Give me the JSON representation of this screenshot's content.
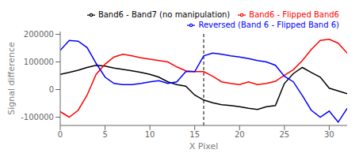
{
  "chart_data": {
    "type": "line",
    "xlabel": "X Pixel",
    "ylabel": "Signal difference",
    "x": [
      0,
      1,
      2,
      3,
      4,
      5,
      6,
      7,
      8,
      9,
      10,
      11,
      12,
      13,
      14,
      15,
      16,
      17,
      18,
      19,
      20,
      21,
      22,
      23,
      24,
      25,
      26,
      27,
      28,
      29,
      30,
      31,
      32
    ],
    "series": [
      {
        "name": "Band6 - Band7 (no manipulation)",
        "color": "black",
        "values": [
          55000,
          62000,
          70000,
          80000,
          88000,
          85000,
          78000,
          73000,
          68000,
          62000,
          55000,
          45000,
          28000,
          18000,
          12000,
          -20000,
          -38000,
          -48000,
          -55000,
          -58000,
          -62000,
          -68000,
          -72000,
          -62000,
          -58000,
          22000,
          58000,
          80000,
          62000,
          45000,
          5000,
          -5000,
          -15000
        ]
      },
      {
        "name": "Band6 - Flipped Band6",
        "color": "red",
        "values": [
          -80000,
          -100000,
          -75000,
          -20000,
          55000,
          92000,
          118000,
          128000,
          122000,
          115000,
          110000,
          105000,
          100000,
          82000,
          68000,
          65000,
          65000,
          48000,
          28000,
          22000,
          18000,
          28000,
          18000,
          22000,
          30000,
          52000,
          72000,
          105000,
          145000,
          178000,
          182000,
          168000,
          132000
        ]
      },
      {
        "name": "Reversed (Band 6 - Flipped Band 6)",
        "color": "blue",
        "values": [
          142000,
          178000,
          175000,
          152000,
          95000,
          45000,
          22000,
          18000,
          18000,
          22000,
          28000,
          32000,
          22000,
          28000,
          65000,
          65000,
          122000,
          132000,
          128000,
          122000,
          118000,
          112000,
          105000,
          100000,
          88000,
          48000,
          28000,
          -22000,
          -75000,
          -100000,
          -78000,
          -118000,
          -68000
        ]
      }
    ],
    "xlim": [
      0,
      32
    ],
    "ylim": [
      -130000,
      210000
    ],
    "xticks": [
      0,
      5,
      10,
      15,
      20,
      25,
      30
    ],
    "yticks": [
      -100000,
      0,
      100000,
      200000
    ],
    "vertical_line_x": 16,
    "legend": "upper right",
    "grid": false
  }
}
